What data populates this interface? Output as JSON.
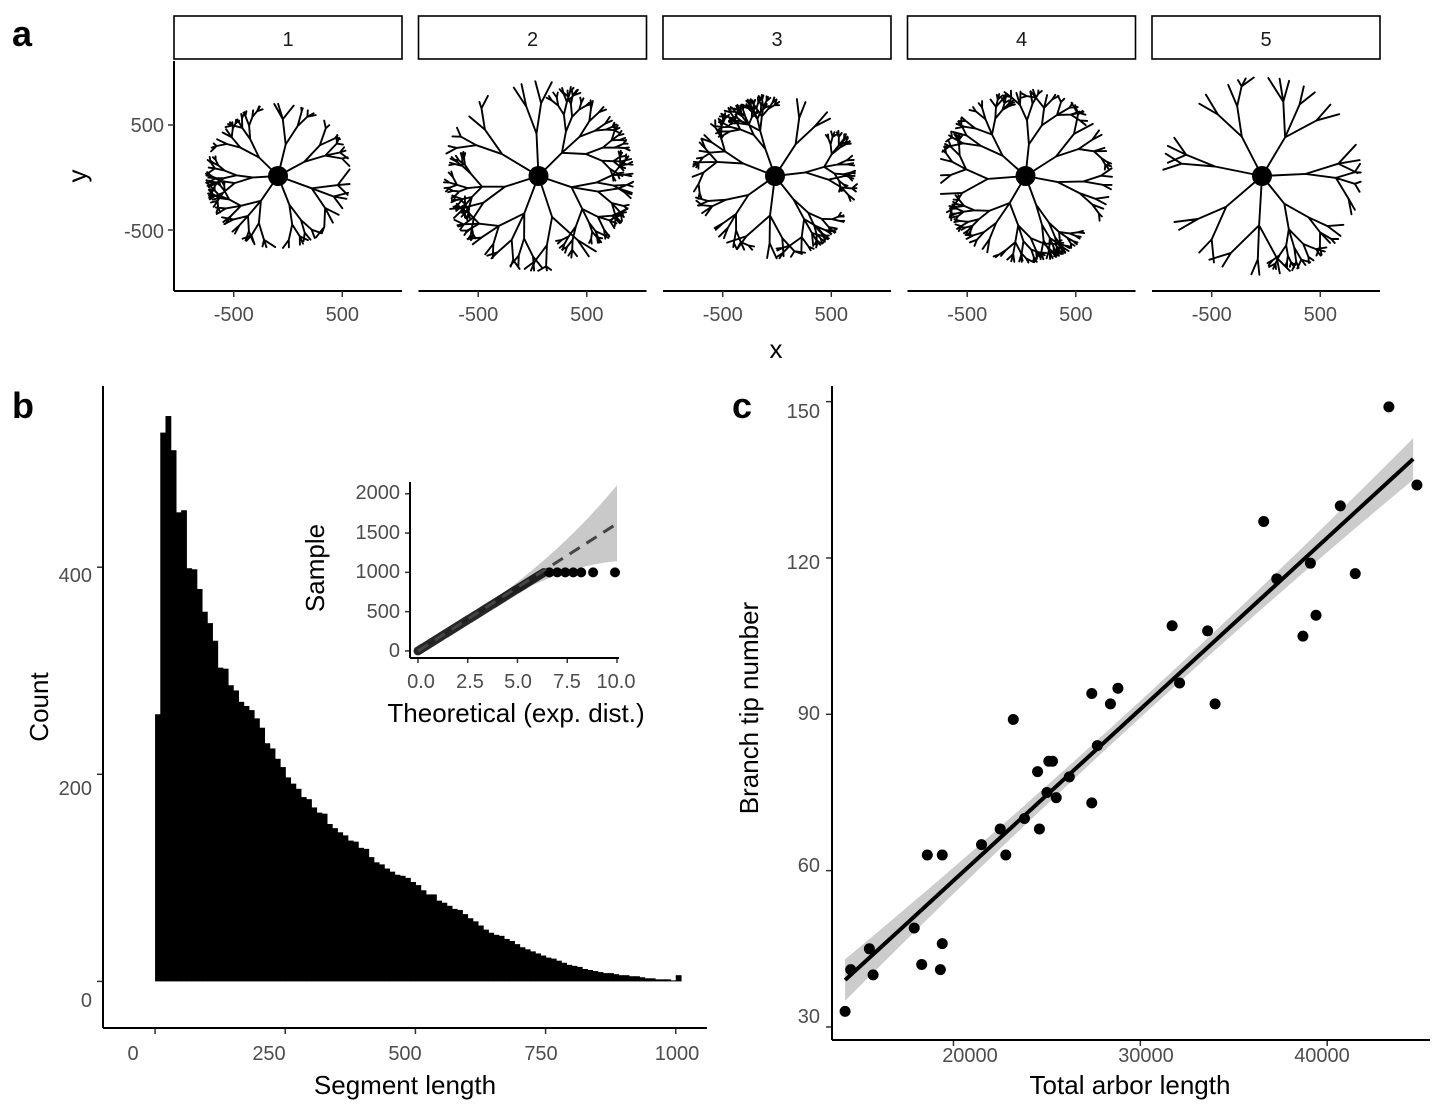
{
  "panel_labels": {
    "a": "a",
    "b": "b",
    "c": "c"
  },
  "chart_data": [
    {
      "type": "diagram",
      "panel": "a",
      "facets": [
        "1",
        "2",
        "3",
        "4",
        "5"
      ],
      "xlabel": "x",
      "ylabel": "y",
      "xticks": [
        "-500",
        "500"
      ],
      "yticks": [
        "500",
        "-500"
      ],
      "xlim": [
        -1050,
        1050
      ],
      "ylim": [
        -1070,
        1070
      ]
    },
    {
      "type": "bar",
      "panel": "b",
      "xlabel": "Segment length",
      "ylabel": "Count",
      "xlim": [
        -100,
        1060
      ],
      "ylim": [
        -45,
        575
      ],
      "xticks": [
        "0",
        "250",
        "500",
        "750",
        "1000"
      ],
      "yticks": [
        "0",
        "200",
        "400"
      ],
      "bin_width": 10,
      "bin_start": 0,
      "values": [
        258,
        530,
        546,
        513,
        453,
        455,
        399,
        398,
        379,
        357,
        346,
        329,
        303,
        302,
        286,
        281,
        270,
        266,
        262,
        254,
        245,
        230,
        225,
        215,
        207,
        197,
        191,
        186,
        178,
        176,
        168,
        163,
        162,
        152,
        148,
        144,
        141,
        136,
        135,
        129,
        128,
        120,
        115,
        113,
        109,
        106,
        103,
        102,
        100,
        96,
        93,
        88,
        84,
        84,
        78,
        76,
        73,
        70,
        69,
        65,
        61,
        58,
        54,
        50,
        47,
        45,
        44,
        41,
        39,
        36,
        33,
        31,
        29,
        27,
        25,
        23,
        22,
        20,
        18,
        16,
        15,
        14,
        12,
        11,
        10,
        9,
        8,
        8,
        7,
        6,
        6,
        5,
        5,
        4,
        3,
        3,
        2,
        2,
        2,
        1,
        6
      ]
    },
    {
      "type": "scatter",
      "panel": "b-inset",
      "xlabel": "Theoretical (exp. dist.)",
      "ylabel": "Sample",
      "xlim": [
        -0.4,
        10.1
      ],
      "ylim": [
        -90,
        2150
      ],
      "xticks": [
        "0.0",
        "2.5",
        "5.0",
        "7.5",
        "10.0"
      ],
      "yticks": [
        "0",
        "500",
        "1000",
        "1500",
        "2000"
      ],
      "reference_line": {
        "x": [
          0,
          10
        ],
        "y": [
          0,
          1620
        ]
      },
      "band_upper_at_x10": 2100,
      "band_lower_at_x10": 1150,
      "tail_points": [
        [
          6.6,
          1000
        ],
        [
          7.0,
          1000
        ],
        [
          7.4,
          1000
        ],
        [
          7.8,
          1000
        ],
        [
          8.2,
          1000
        ],
        [
          8.8,
          1000
        ],
        [
          9.9,
          1000
        ]
      ]
    },
    {
      "type": "scatter",
      "panel": "c",
      "xlabel": "Total arbor length",
      "ylabel": "Branch tip number",
      "xlim": [
        13500,
        45500
      ],
      "ylim": [
        27.5,
        153
      ],
      "xticks": [
        "20000",
        "30000",
        "40000"
      ],
      "yticks": [
        "30",
        "60",
        "90",
        "120",
        "150"
      ],
      "points": [
        [
          14200,
          33
        ],
        [
          14500,
          41
        ],
        [
          15500,
          45
        ],
        [
          15700,
          40
        ],
        [
          17900,
          49
        ],
        [
          18300,
          42
        ],
        [
          18600,
          63
        ],
        [
          19300,
          41
        ],
        [
          19400,
          46
        ],
        [
          19400,
          63
        ],
        [
          21500,
          65
        ],
        [
          22500,
          68
        ],
        [
          22800,
          63
        ],
        [
          23200,
          89
        ],
        [
          23800,
          70
        ],
        [
          24500,
          79
        ],
        [
          24600,
          68
        ],
        [
          25000,
          75
        ],
        [
          25100,
          81
        ],
        [
          25300,
          81
        ],
        [
          25500,
          74
        ],
        [
          26200,
          78
        ],
        [
          27400,
          94
        ],
        [
          27400,
          73
        ],
        [
          27700,
          84
        ],
        [
          28400,
          92
        ],
        [
          28800,
          95
        ],
        [
          31700,
          107
        ],
        [
          32100,
          96
        ],
        [
          33600,
          106
        ],
        [
          34000,
          92
        ],
        [
          36600,
          127
        ],
        [
          37300,
          116
        ],
        [
          38700,
          105
        ],
        [
          39100,
          119
        ],
        [
          39400,
          109
        ],
        [
          40700,
          130
        ],
        [
          41500,
          117
        ],
        [
          43300,
          149
        ],
        [
          44800,
          134
        ]
      ],
      "fit_line": {
        "x": [
          14200,
          44600
        ],
        "y": [
          39,
          139
        ]
      },
      "ci_half_width_at_ends": 4.0,
      "ci_half_width_at_center": 1.6
    }
  ]
}
